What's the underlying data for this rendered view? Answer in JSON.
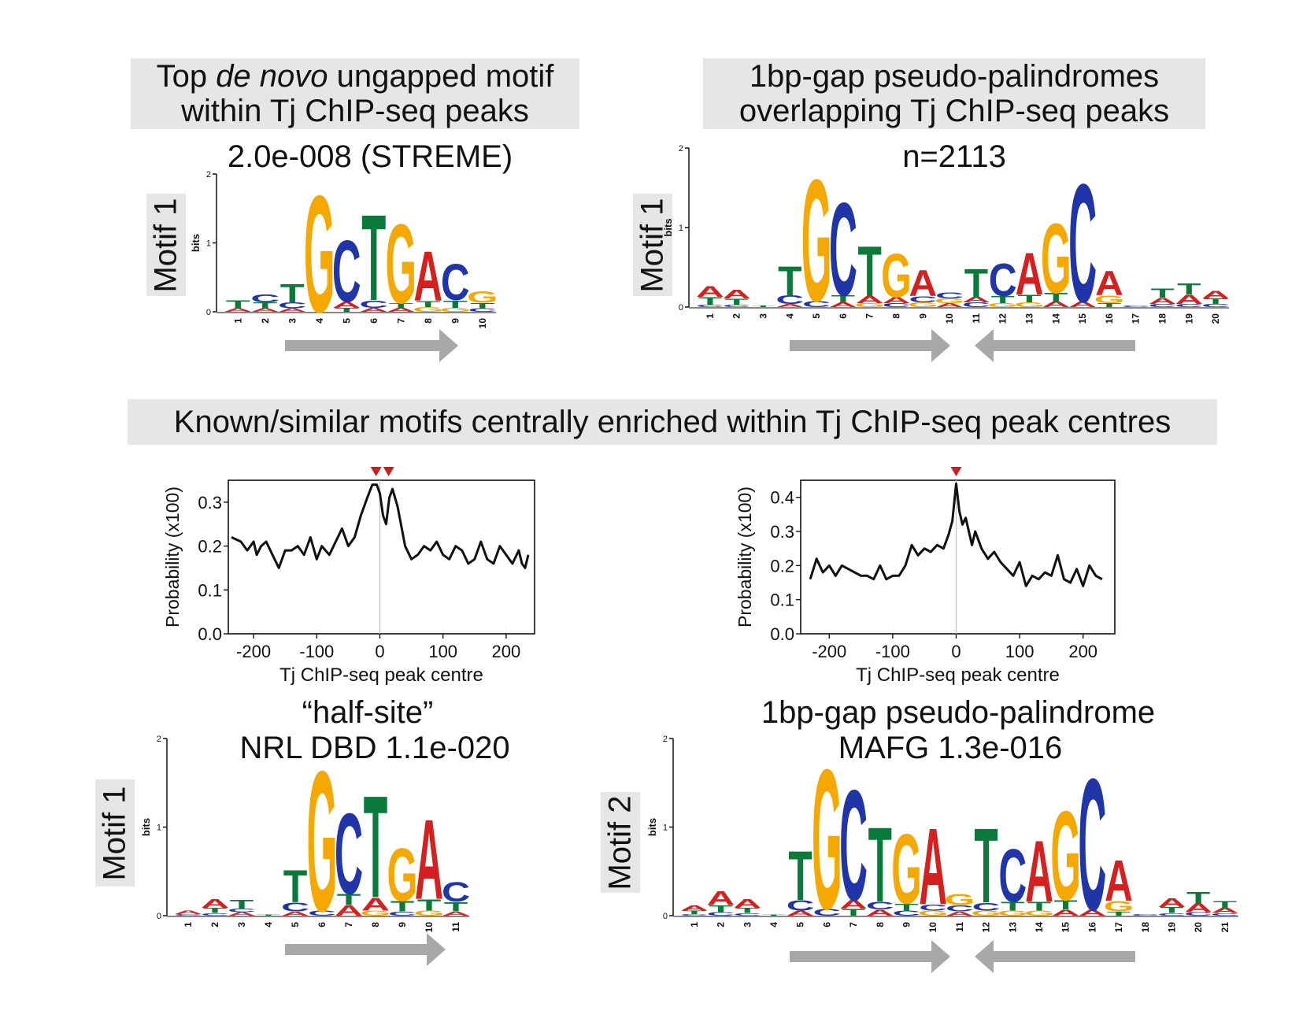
{
  "colors": {
    "A": "#d62020",
    "C": "#1f35a8",
    "G": "#f5a800",
    "T": "#0a7a3a",
    "arrow": "#a8a8a8",
    "peak": "#cc1f1f",
    "box": "#e6e6e6"
  },
  "panels": {
    "top_left": {
      "title_pre": "Top ",
      "title_em": "de novo",
      "title_post": " ungapped motif",
      "title_line2": "within Tj ChIP-seq peaks",
      "subtitle": "2.0e-008 (STREME)",
      "motif_tag": "Motif 1",
      "ylabel": "bits",
      "yticks": [
        "0",
        "1",
        "2"
      ],
      "positions": [
        "1",
        "2",
        "3",
        "4",
        "5",
        "6",
        "7",
        "8",
        "9",
        "10"
      ],
      "columns": [
        [
          [
            "A",
            0.05
          ],
          [
            "T",
            0.12
          ]
        ],
        [
          [
            "A",
            0.05
          ],
          [
            "T",
            0.09
          ],
          [
            "C",
            0.12
          ]
        ],
        [
          [
            "A",
            0.05
          ],
          [
            "C",
            0.09
          ],
          [
            "T",
            0.28
          ]
        ],
        [
          [
            "G",
            1.77
          ]
        ],
        [
          [
            "T",
            0.06
          ],
          [
            "A",
            0.09
          ],
          [
            "C",
            0.93
          ]
        ],
        [
          [
            "A",
            0.06
          ],
          [
            "C",
            0.11
          ],
          [
            "T",
            1.3
          ]
        ],
        [
          [
            "A",
            0.06
          ],
          [
            "T",
            0.07
          ],
          [
            "G",
            1.2
          ]
        ],
        [
          [
            "G",
            0.07
          ],
          [
            "T",
            0.09
          ],
          [
            "A",
            0.75
          ]
        ],
        [
          [
            "G",
            0.06
          ],
          [
            "T",
            0.11
          ],
          [
            "C",
            0.55
          ]
        ],
        [
          [
            "C",
            0.05
          ],
          [
            "T",
            0.08
          ],
          [
            "G",
            0.18
          ]
        ]
      ]
    },
    "top_right": {
      "title_line1": "1bp-gap pseudo-palindromes",
      "title_line2": "overlapping Tj ChIP-seq peaks",
      "subtitle": "n=2113",
      "motif_tag": "Motif 1",
      "ylabel": "bits",
      "yticks": [
        "0",
        "1",
        "2"
      ],
      "positions": [
        "1",
        "2",
        "3",
        "4",
        "5",
        "6",
        "7",
        "8",
        "9",
        "10",
        "11",
        "12",
        "13",
        "14",
        "15",
        "16",
        "17",
        "18",
        "19",
        "20"
      ],
      "columns": [
        [
          [
            "C",
            0.03
          ],
          [
            "T",
            0.1
          ],
          [
            "A",
            0.14
          ]
        ],
        [
          [
            "C",
            0.03
          ],
          [
            "T",
            0.08
          ],
          [
            "A",
            0.11
          ]
        ],
        [
          [
            "T",
            0.02
          ]
        ],
        [
          [
            "A",
            0.04
          ],
          [
            "C",
            0.11
          ],
          [
            "T",
            0.38
          ]
        ],
        [
          [
            "C",
            0.08
          ],
          [
            "G",
            1.6
          ]
        ],
        [
          [
            "A",
            0.06
          ],
          [
            "T",
            0.09
          ],
          [
            "C",
            1.22
          ]
        ],
        [
          [
            "G",
            0.05
          ],
          [
            "A",
            0.09
          ],
          [
            "T",
            0.66
          ]
        ],
        [
          [
            "C",
            0.05
          ],
          [
            "A",
            0.08
          ],
          [
            "G",
            0.57
          ]
        ],
        [
          [
            "G",
            0.06
          ],
          [
            "C",
            0.08
          ],
          [
            "A",
            0.34
          ]
        ],
        [
          [
            "A",
            0.05
          ],
          [
            "G",
            0.06
          ],
          [
            "C",
            0.08
          ]
        ],
        [
          [
            "C",
            0.06
          ],
          [
            "A",
            0.07
          ],
          [
            "T",
            0.37
          ]
        ],
        [
          [
            "G",
            0.05
          ],
          [
            "T",
            0.09
          ],
          [
            "C",
            0.43
          ]
        ],
        [
          [
            "G",
            0.06
          ],
          [
            "T",
            0.1
          ],
          [
            "A",
            0.55
          ]
        ],
        [
          [
            "A",
            0.07
          ],
          [
            "T",
            0.11
          ],
          [
            "G",
            0.91
          ]
        ],
        [
          [
            "A",
            0.07
          ],
          [
            "C",
            1.55
          ]
        ],
        [
          [
            "T",
            0.05
          ],
          [
            "G",
            0.1
          ],
          [
            "A",
            0.32
          ]
        ],
        [
          [
            "C",
            0.02
          ]
        ],
        [
          [
            "C",
            0.04
          ],
          [
            "A",
            0.08
          ],
          [
            "T",
            0.12
          ]
        ],
        [
          [
            "C",
            0.04
          ],
          [
            "A",
            0.12
          ],
          [
            "T",
            0.15
          ]
        ],
        [
          [
            "C",
            0.04
          ],
          [
            "T",
            0.07
          ],
          [
            "A",
            0.1
          ]
        ]
      ]
    },
    "middle": {
      "title": "Known/similar motifs centrally enriched within Tj ChIP-seq peak centres"
    },
    "bottom_left": {
      "subtitle_line1": "“half-site”",
      "subtitle_line2": "NRL DBD  1.1e-020",
      "motif_tag": "Motif 1",
      "ylabel": "bits",
      "yticks": [
        "0",
        "1",
        "2"
      ],
      "positions": [
        "1",
        "2",
        "3",
        "4",
        "5",
        "6",
        "7",
        "8",
        "9",
        "10",
        "11"
      ],
      "columns": [
        [
          [
            "C",
            0.02
          ],
          [
            "A",
            0.04
          ]
        ],
        [
          [
            "C",
            0.03
          ],
          [
            "T",
            0.06
          ],
          [
            "A",
            0.1
          ]
        ],
        [
          [
            "A",
            0.04
          ],
          [
            "C",
            0.04
          ],
          [
            "T",
            0.1
          ]
        ],
        [
          [
            "T",
            0.01
          ]
        ],
        [
          [
            "A",
            0.05
          ],
          [
            "C",
            0.1
          ],
          [
            "T",
            0.38
          ]
        ],
        [
          [
            "C",
            0.06
          ],
          [
            "G",
            1.65
          ]
        ],
        [
          [
            "A",
            0.12
          ],
          [
            "T",
            0.13
          ],
          [
            "C",
            0.95
          ]
        ],
        [
          [
            "G",
            0.06
          ],
          [
            "A",
            0.15
          ],
          [
            "T",
            1.2
          ]
        ],
        [
          [
            "C",
            0.05
          ],
          [
            "T",
            0.12
          ],
          [
            "G",
            0.62
          ]
        ],
        [
          [
            "G",
            0.06
          ],
          [
            "T",
            0.13
          ],
          [
            "A",
            0.94
          ]
        ],
        [
          [
            "A",
            0.05
          ],
          [
            "T",
            0.11
          ],
          [
            "C",
            0.23
          ]
        ]
      ]
    },
    "bottom_right": {
      "subtitle_line1": "1bp-gap pseudo-palindrome",
      "subtitle_line2": "MAFG  1.3e-016",
      "motif_tag": "Motif 2",
      "ylabel": "bits",
      "yticks": [
        "0",
        "1",
        "2"
      ],
      "positions": [
        "1",
        "2",
        "3",
        "4",
        "5",
        "6",
        "7",
        "8",
        "9",
        "10",
        "11",
        "12",
        "13",
        "14",
        "15",
        "16",
        "17",
        "18",
        "19",
        "20",
        "21"
      ],
      "columns": [
        [
          [
            "C",
            0.02
          ],
          [
            "T",
            0.04
          ],
          [
            "A",
            0.06
          ]
        ],
        [
          [
            "C",
            0.04
          ],
          [
            "T",
            0.08
          ],
          [
            "A",
            0.16
          ]
        ],
        [
          [
            "C",
            0.03
          ],
          [
            "T",
            0.06
          ],
          [
            "A",
            0.1
          ]
        ],
        [
          [
            "T",
            0.01
          ]
        ],
        [
          [
            "A",
            0.06
          ],
          [
            "C",
            0.12
          ],
          [
            "T",
            0.58
          ]
        ],
        [
          [
            "C",
            0.08
          ],
          [
            "G",
            1.65
          ]
        ],
        [
          [
            "T",
            0.08
          ],
          [
            "A",
            0.1
          ],
          [
            "C",
            1.3
          ]
        ],
        [
          [
            "A",
            0.07
          ],
          [
            "C",
            0.09
          ],
          [
            "T",
            0.88
          ]
        ],
        [
          [
            "C",
            0.06
          ],
          [
            "T",
            0.08
          ],
          [
            "G",
            0.82
          ]
        ],
        [
          [
            "G",
            0.06
          ],
          [
            "C",
            0.07
          ],
          [
            "A",
            0.9
          ]
        ],
        [
          [
            "A",
            0.05
          ],
          [
            "C",
            0.07
          ],
          [
            "G",
            0.13
          ]
        ],
        [
          [
            "G",
            0.06
          ],
          [
            "C",
            0.09
          ],
          [
            "T",
            0.88
          ]
        ],
        [
          [
            "G",
            0.06
          ],
          [
            "T",
            0.1
          ],
          [
            "C",
            0.62
          ]
        ],
        [
          [
            "G",
            0.06
          ],
          [
            "T",
            0.1
          ],
          [
            "A",
            0.72
          ]
        ],
        [
          [
            "A",
            0.07
          ],
          [
            "T",
            0.11
          ],
          [
            "G",
            1.05
          ]
        ],
        [
          [
            "A",
            0.07
          ],
          [
            "C",
            1.55
          ]
        ],
        [
          [
            "T",
            0.05
          ],
          [
            "G",
            0.12
          ],
          [
            "A",
            0.48
          ]
        ],
        [
          [
            "C",
            0.02
          ]
        ],
        [
          [
            "C",
            0.03
          ],
          [
            "T",
            0.07
          ],
          [
            "A",
            0.1
          ]
        ],
        [
          [
            "C",
            0.04
          ],
          [
            "A",
            0.1
          ],
          [
            "T",
            0.14
          ]
        ],
        [
          [
            "C",
            0.03
          ],
          [
            "A",
            0.06
          ],
          [
            "T",
            0.08
          ]
        ]
      ]
    }
  },
  "chart_data": [
    {
      "type": "line",
      "title": "",
      "xlabel": "Tj ChIP-seq peak centre",
      "ylabel": "Probability (x100)",
      "xlim": [
        -240,
        245
      ],
      "ylim": [
        0.0,
        0.35
      ],
      "xticks": [
        "-200",
        "-100",
        "0",
        "100",
        "200"
      ],
      "yticks": [
        "0.0",
        "0.1",
        "0.2",
        "0.3"
      ],
      "peak_markers_x": [
        -6,
        14
      ],
      "x": [
        -235,
        -220,
        -210,
        -200,
        -195,
        -188,
        -180,
        -170,
        -160,
        -150,
        -140,
        -130,
        -120,
        -110,
        -100,
        -92,
        -80,
        -70,
        -60,
        -50,
        -40,
        -30,
        -20,
        -12,
        -5,
        0,
        5,
        10,
        15,
        20,
        28,
        40,
        50,
        60,
        70,
        80,
        90,
        100,
        110,
        120,
        130,
        140,
        150,
        160,
        170,
        180,
        190,
        200,
        210,
        220,
        225,
        230,
        235
      ],
      "values": [
        0.22,
        0.21,
        0.19,
        0.21,
        0.18,
        0.2,
        0.21,
        0.18,
        0.15,
        0.19,
        0.19,
        0.2,
        0.18,
        0.22,
        0.17,
        0.2,
        0.18,
        0.21,
        0.24,
        0.2,
        0.22,
        0.27,
        0.31,
        0.34,
        0.34,
        0.32,
        0.27,
        0.25,
        0.31,
        0.33,
        0.29,
        0.2,
        0.17,
        0.18,
        0.2,
        0.19,
        0.21,
        0.18,
        0.17,
        0.2,
        0.19,
        0.16,
        0.17,
        0.21,
        0.17,
        0.16,
        0.2,
        0.18,
        0.16,
        0.19,
        0.16,
        0.15,
        0.18
      ]
    },
    {
      "type": "line",
      "title": "",
      "xlabel": "Tj ChIP-seq peak centre",
      "ylabel": "Probability (x100)",
      "xlim": [
        -245,
        250
      ],
      "ylim": [
        0.0,
        0.45
      ],
      "xticks": [
        "-200",
        "-100",
        "0",
        "100",
        "200"
      ],
      "yticks": [
        "0.0",
        "0.1",
        "0.2",
        "0.3",
        "0.4"
      ],
      "peak_markers_x": [
        0
      ],
      "x": [
        -230,
        -220,
        -210,
        -200,
        -190,
        -180,
        -170,
        -160,
        -150,
        -140,
        -130,
        -120,
        -110,
        -100,
        -90,
        -80,
        -70,
        -60,
        -50,
        -40,
        -30,
        -20,
        -12,
        -6,
        0,
        5,
        10,
        15,
        20,
        25,
        30,
        40,
        50,
        60,
        70,
        80,
        90,
        100,
        110,
        120,
        130,
        140,
        150,
        160,
        170,
        180,
        190,
        200,
        210,
        220,
        230
      ],
      "values": [
        0.16,
        0.22,
        0.18,
        0.2,
        0.17,
        0.2,
        0.19,
        0.18,
        0.17,
        0.17,
        0.16,
        0.2,
        0.16,
        0.17,
        0.17,
        0.2,
        0.26,
        0.23,
        0.25,
        0.24,
        0.26,
        0.25,
        0.29,
        0.33,
        0.44,
        0.36,
        0.32,
        0.34,
        0.3,
        0.26,
        0.3,
        0.25,
        0.22,
        0.24,
        0.21,
        0.19,
        0.17,
        0.21,
        0.14,
        0.17,
        0.16,
        0.18,
        0.17,
        0.23,
        0.16,
        0.15,
        0.19,
        0.14,
        0.2,
        0.17,
        0.16
      ]
    }
  ]
}
